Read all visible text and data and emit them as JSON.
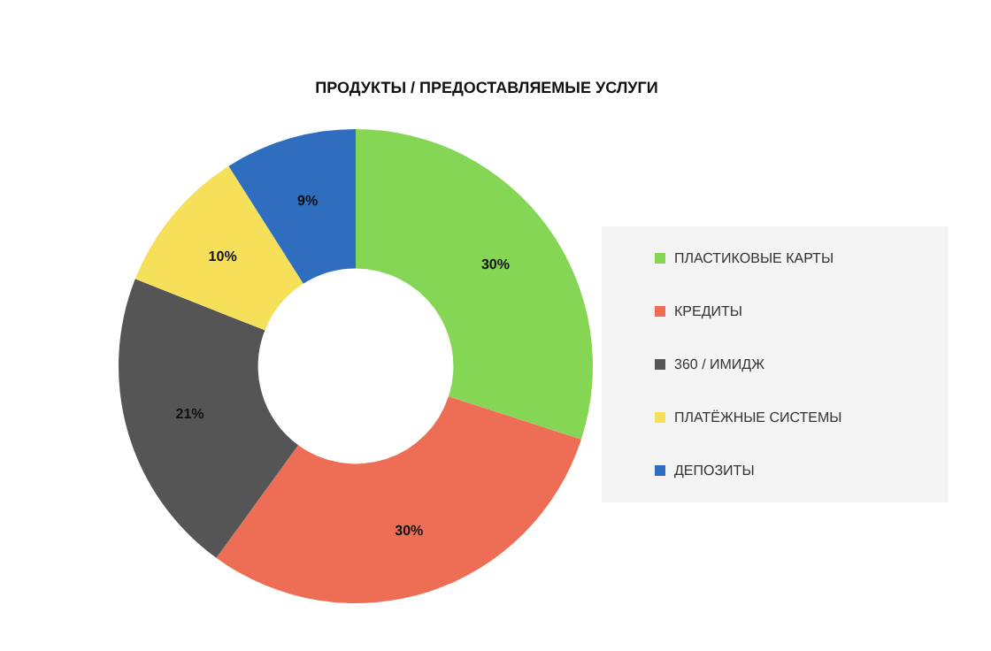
{
  "chart_data": {
    "type": "donut",
    "title": "ПРОДУКТЫ / ПРЕДОСТАВЛЯЕМЫЕ УСЛУГИ",
    "categories": [
      "ПЛАСТИКОВЫЕ КАРТЫ",
      "КРЕДИТЫ",
      "360 / ИМИДЖ",
      "ПЛАТЁЖНЫЕ СИСТЕМЫ",
      "ДЕПОЗИТЫ"
    ],
    "values": [
      30,
      30,
      21,
      10,
      9
    ],
    "colors": [
      "#84d654",
      "#ee6e55",
      "#555555",
      "#f6e05a",
      "#2f6dbf"
    ],
    "value_labels": [
      "30%",
      "30%",
      "21%",
      "10%",
      "9%"
    ],
    "legend": "right"
  }
}
